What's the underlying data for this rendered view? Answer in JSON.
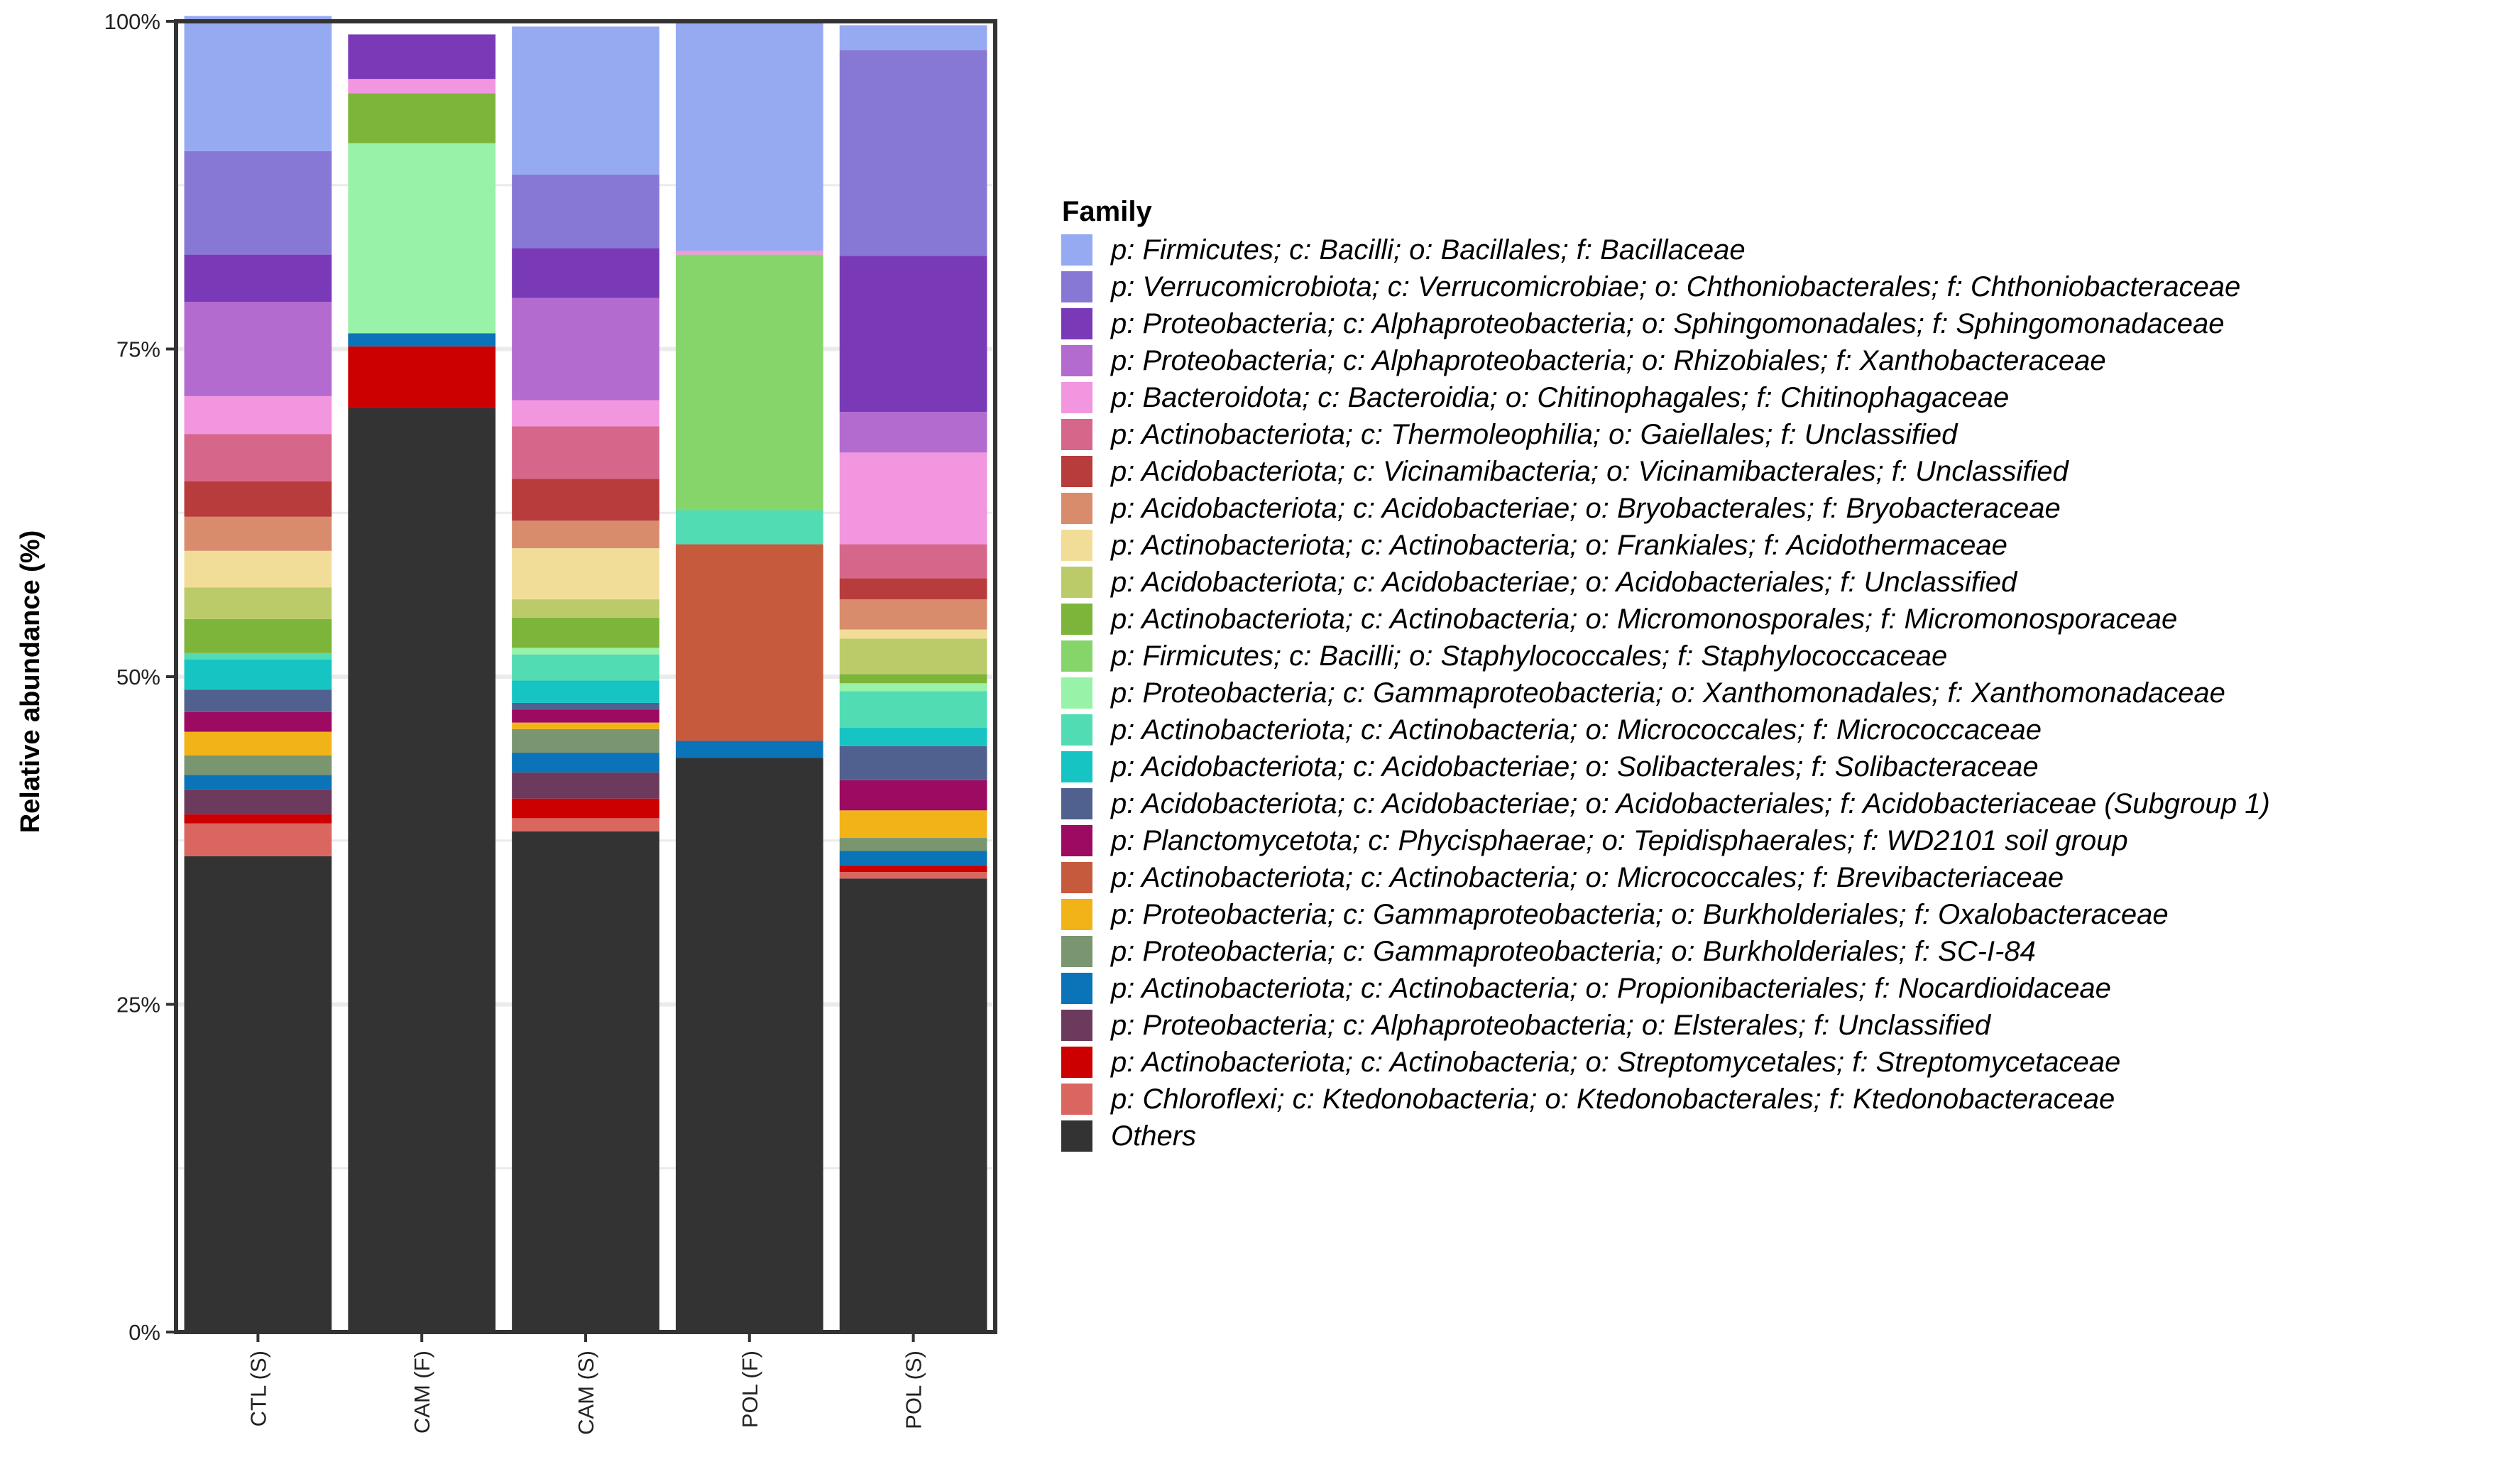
{
  "chart_data": {
    "type": "stacked-bar",
    "title": "",
    "xlabel": "",
    "ylabel": "Relative abundance (%)",
    "ylim": [
      0,
      100
    ],
    "y_ticks": [
      "0%",
      "25%",
      "50%",
      "75%",
      "100%"
    ],
    "grid": true,
    "legend_title": "Family",
    "legend_position": "right",
    "categories": [
      "CTL (S)",
      "CAM (F)",
      "CAM (S)",
      "POL (F)",
      "POL (S)"
    ],
    "series": [
      {
        "name": "Others",
        "color": "#333333",
        "values": [
          36.3,
          70.5,
          38.2,
          43.8,
          34.6
        ]
      },
      {
        "name": "p: Chloroflexi; c: Ktedonobacteria; o: Ktedonobacterales; f: Ktedonobacteraceae",
        "color": "#d9665f",
        "values": [
          2.5,
          0,
          1.0,
          0,
          0.5
        ]
      },
      {
        "name": "p: Actinobacteriota; c: Actinobacteria; o: Streptomycetales; f: Streptomycetaceae",
        "color": "#cc0000",
        "values": [
          0.7,
          4.7,
          1.5,
          0,
          0.5
        ]
      },
      {
        "name": "p: Proteobacteria; c: Alphaproteobacteria; o: Elsterales; f: Unclassified",
        "color": "#6b3a5c",
        "values": [
          1.9,
          0,
          2.0,
          0,
          0
        ]
      },
      {
        "name": "p: Actinobacteriota; c: Actinobacteria; o: Propionibacteriales; f: Nocardioidaceae",
        "color": "#0b73b8",
        "values": [
          1.1,
          1.0,
          1.5,
          1.3,
          1.1
        ]
      },
      {
        "name": "p: Proteobacteria; c: Gammaproteobacteria; o: Burkholderiales; f: SC-I-84",
        "color": "#7a9670",
        "values": [
          1.5,
          0,
          1.8,
          0,
          1.0
        ]
      },
      {
        "name": "p: Proteobacteria; c: Gammaproteobacteria; o: Burkholderiales; f: Oxalobacteraceae",
        "color": "#f2b318",
        "values": [
          1.8,
          0,
          0.5,
          0,
          2.1
        ]
      },
      {
        "name": "p: Actinobacteriota; c: Actinobacteria; o: Micrococcales; f: Brevibacteriaceae",
        "color": "#c65a3c",
        "values": [
          0,
          0,
          0,
          15.0,
          0
        ]
      },
      {
        "name": "p: Planctomycetota; c: Phycisphaerae; o: Tepidisphaerales; f: WD2101 soil group",
        "color": "#9c0a61",
        "values": [
          1.5,
          0,
          1.0,
          0,
          2.3
        ]
      },
      {
        "name": "p: Acidobacteriota; c: Acidobacteriae; o: Acidobacteriales; f: Acidobacteriaceae (Subgroup 1)",
        "color": "#51618f",
        "values": [
          1.7,
          0,
          0.5,
          0,
          2.6
        ]
      },
      {
        "name": "p: Acidobacteriota; c: Acidobacteriae; o: Solibacterales; f: Solibacteraceae",
        "color": "#16c4c4",
        "values": [
          2.3,
          0,
          1.7,
          0,
          1.4
        ]
      },
      {
        "name": "p: Actinobacteriota; c: Actinobacteria; o: Micrococcales; f: Micrococcaceae",
        "color": "#52dcb4",
        "values": [
          0.5,
          0,
          2.0,
          2.6,
          2.8
        ]
      },
      {
        "name": "p: Proteobacteria; c: Gammaproteobacteria; o: Xanthomonadales; f: Xanthomonadaceae",
        "color": "#98f2a7",
        "values": [
          0,
          14.5,
          0.5,
          0,
          0.6
        ]
      },
      {
        "name": "p: Firmicutes; c: Bacilli; o: Staphylococcales; f: Staphylococcaceae",
        "color": "#86d56a",
        "values": [
          0,
          0,
          0,
          19.5,
          0
        ]
      },
      {
        "name": "p: Actinobacteriota; c: Actinobacteria; o: Micromonosporales; f: Micromonosporaceae",
        "color": "#7db53a",
        "values": [
          2.6,
          3.8,
          2.3,
          0,
          0.7
        ]
      },
      {
        "name": "p: Acidobacteriota; c: Acidobacteriae; o: Acidobacteriales; f: Unclassified",
        "color": "#bccb69",
        "values": [
          2.4,
          0,
          1.4,
          0,
          2.7
        ]
      },
      {
        "name": "p: Actinobacteriota; c: Actinobacteria; o: Frankiales; f: Acidothermaceae",
        "color": "#f2dd98",
        "values": [
          2.8,
          0,
          3.9,
          0,
          0.7
        ]
      },
      {
        "name": "p: Acidobacteriota; c: Acidobacteriae; o: Bryobacterales; f: Bryobacteraceae",
        "color": "#d98c6c",
        "values": [
          2.6,
          0,
          2.1,
          0,
          2.3
        ]
      },
      {
        "name": "p: Acidobacteriota; c: Vicinamibacteria; o: Vicinamibacterales; f: Unclassified",
        "color": "#b83c3c",
        "values": [
          2.7,
          0,
          3.2,
          0,
          1.6
        ]
      },
      {
        "name": "p: Actinobacteriota; c: Thermoleophilia; o: Gaiellales; f: Unclassified",
        "color": "#d6668a",
        "values": [
          3.6,
          0,
          4.0,
          0,
          2.6
        ]
      },
      {
        "name": "p: Bacteroidota; c: Bacteroidia; o: Chitinophagales; f: Chitinophagaceae",
        "color": "#f296e0",
        "values": [
          2.9,
          1.1,
          2.0,
          0.3,
          7.0
        ]
      },
      {
        "name": "p: Proteobacteria; c: Alphaproteobacteria; o: Rhizobiales; f: Xanthobacteraceae",
        "color": "#b36bcf",
        "values": [
          7.2,
          0,
          7.8,
          0,
          3.1
        ]
      },
      {
        "name": "p: Proteobacteria; c: Alphaproteobacteria; o: Sphingomonadales; f: Sphingomonadaceae",
        "color": "#7a3ab8",
        "values": [
          3.6,
          3.4,
          3.8,
          0,
          11.9
        ]
      },
      {
        "name": "p: Verrucomicrobiota; c: Verrucomicrobiae; o: Chthoniobacterales; f: Chthoniobacteraceae",
        "color": "#8878d6",
        "values": [
          7.9,
          0,
          5.6,
          0,
          15.7
        ]
      },
      {
        "name": "p: Firmicutes; c: Bacilli; o: Bacillales; f: Bacillaceae",
        "color": "#96aaf2",
        "values": [
          10.3,
          0,
          11.3,
          17.5,
          1.9
        ]
      }
    ],
    "legend_order": [
      "p: Firmicutes; c: Bacilli; o: Bacillales; f: Bacillaceae",
      "p: Verrucomicrobiota; c: Verrucomicrobiae; o: Chthoniobacterales; f: Chthoniobacteraceae",
      "p: Proteobacteria; c: Alphaproteobacteria; o: Sphingomonadales; f: Sphingomonadaceae",
      "p: Proteobacteria; c: Alphaproteobacteria; o: Rhizobiales; f: Xanthobacteraceae",
      "p: Bacteroidota; c: Bacteroidia; o: Chitinophagales; f: Chitinophagaceae",
      "p: Actinobacteriota; c: Thermoleophilia; o: Gaiellales; f: Unclassified",
      "p: Acidobacteriota; c: Vicinamibacteria; o: Vicinamibacterales; f: Unclassified",
      "p: Acidobacteriota; c: Acidobacteriae; o: Bryobacterales; f: Bryobacteraceae",
      "p: Actinobacteriota; c: Actinobacteria; o: Frankiales; f: Acidothermaceae",
      "p: Acidobacteriota; c: Acidobacteriae; o: Acidobacteriales; f: Unclassified",
      "p: Actinobacteriota; c: Actinobacteria; o: Micromonosporales; f: Micromonosporaceae",
      "p: Firmicutes; c: Bacilli; o: Staphylococcales; f: Staphylococcaceae",
      "p: Proteobacteria; c: Gammaproteobacteria; o: Xanthomonadales; f: Xanthomonadaceae",
      "p: Actinobacteriota; c: Actinobacteria; o: Micrococcales; f: Micrococcaceae",
      "p: Acidobacteriota; c: Acidobacteriae; o: Solibacterales; f: Solibacteraceae",
      "p: Acidobacteriota; c: Acidobacteriae; o: Acidobacteriales; f: Acidobacteriaceae (Subgroup 1)",
      "p: Planctomycetota; c: Phycisphaerae; o: Tepidisphaerales; f: WD2101 soil group",
      "p: Actinobacteriota; c: Actinobacteria; o: Micrococcales; f: Brevibacteriaceae",
      "p: Proteobacteria; c: Gammaproteobacteria; o: Burkholderiales; f: Oxalobacteraceae",
      "p: Proteobacteria; c: Gammaproteobacteria; o: Burkholderiales; f: SC-I-84",
      "p: Actinobacteriota; c: Actinobacteria; o: Propionibacteriales; f: Nocardioidaceae",
      "p: Proteobacteria; c: Alphaproteobacteria; o: Elsterales; f: Unclassified",
      "p: Actinobacteriota; c: Actinobacteria; o: Streptomycetales; f: Streptomycetaceae",
      "p: Chloroflexi; c: Ktedonobacteria; o: Ktedonobacterales; f: Ktedonobacteraceae",
      "Others"
    ]
  }
}
